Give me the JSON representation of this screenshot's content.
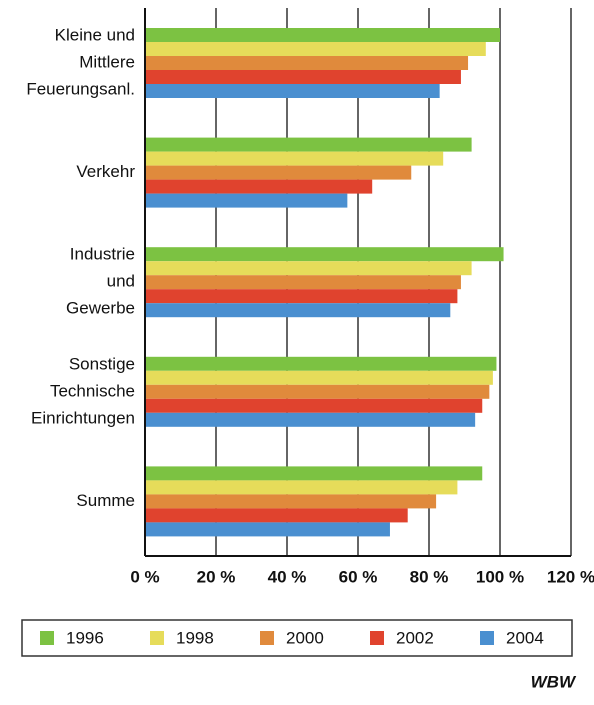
{
  "chart_data": {
    "type": "barh",
    "categories": [
      [
        "Kleine und",
        "Mittlere",
        "Feuerungsanl."
      ],
      [
        "Verkehr"
      ],
      [
        "Industrie",
        "und",
        "Gewerbe"
      ],
      [
        "Sonstige",
        "Technische",
        "Einrichtungen"
      ],
      [
        "Summe"
      ]
    ],
    "series": [
      {
        "name": "1996",
        "color": "#7cc242",
        "values": [
          100,
          92,
          101,
          99,
          95
        ]
      },
      {
        "name": "1998",
        "color": "#e6dc5a",
        "values": [
          96,
          84,
          92,
          98,
          88
        ]
      },
      {
        "name": "2000",
        "color": "#e08a3c",
        "values": [
          91,
          75,
          89,
          97,
          82
        ]
      },
      {
        "name": "2002",
        "color": "#e0432e",
        "values": [
          89,
          64,
          88,
          95,
          74
        ]
      },
      {
        "name": "2004",
        "color": "#4a8fd0",
        "values": [
          83,
          57,
          86,
          93,
          69
        ]
      }
    ],
    "xlim": [
      0,
      120
    ],
    "xticks": [
      {
        "value": 0,
        "label": "0 %"
      },
      {
        "value": 20,
        "label": "20 %"
      },
      {
        "value": 40,
        "label": "40 %"
      },
      {
        "value": 60,
        "label": "60 %"
      },
      {
        "value": 80,
        "label": "80 %"
      },
      {
        "value": 100,
        "label": "100 %"
      },
      {
        "value": 120,
        "label": "120 %"
      }
    ],
    "grid": true,
    "legend": "bottom",
    "logo": "WBW"
  }
}
